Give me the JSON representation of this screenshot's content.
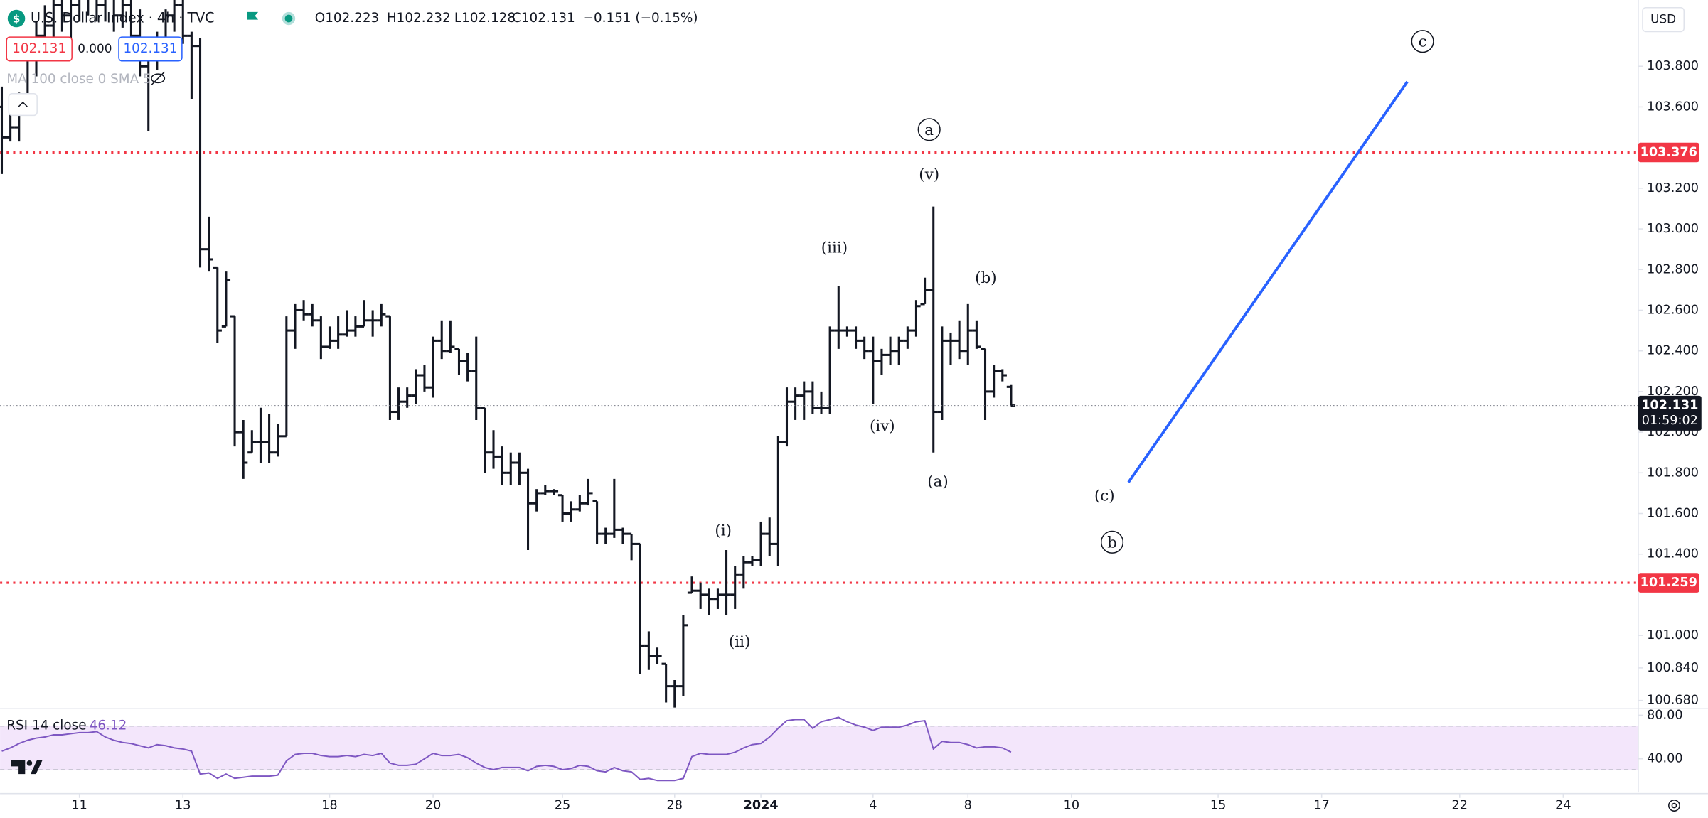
{
  "toolbar": {
    "bid": "102.131",
    "spread": "0.000",
    "ask": "102.131",
    "indicator": "MA 100 close 0 SMA 5",
    "currency": "USD"
  },
  "chart_data": [
    {
      "type": "ohlc",
      "title": "U.S. Dollar Index · 4h · TVC",
      "ohlc_labels": [
        "O102.223",
        "H102.232",
        "L102.128",
        "C102.131"
      ],
      "change_label": "−0.151 (−0.15%)",
      "color": "#131722",
      "x": [
        -9,
        -8,
        -7,
        -6,
        -5,
        -4,
        -3,
        -2,
        -1,
        0,
        1,
        2,
        3,
        4,
        5,
        6,
        7,
        8,
        9,
        10,
        11,
        12,
        13,
        14,
        15,
        16,
        17,
        18,
        19,
        20,
        21,
        22,
        23,
        24,
        25,
        26,
        27,
        28,
        29,
        30,
        31,
        32,
        33,
        34,
        35,
        36,
        37,
        38,
        39,
        40,
        41,
        42,
        43,
        44,
        45,
        46,
        47,
        48,
        49,
        50,
        51,
        52,
        53,
        54,
        55,
        56,
        57,
        58,
        59,
        60,
        61,
        62,
        63,
        64,
        65,
        66,
        67,
        68,
        69,
        70,
        71,
        72,
        73,
        74,
        75,
        76,
        77,
        78,
        79,
        80,
        81,
        82,
        83,
        84,
        85,
        86,
        87,
        88,
        89,
        90,
        91,
        92,
        93,
        94,
        95,
        96,
        97,
        98,
        99,
        100,
        101,
        102,
        103,
        104,
        105,
        106,
        107,
        108
      ],
      "open": [
        103.6,
        103.45,
        103.5,
        103.62,
        103.85,
        103.95,
        104.0,
        104.1,
        104.05,
        104.1,
        104.2,
        104.15,
        104.1,
        104.15,
        104.05,
        104.1,
        103.95,
        103.8,
        103.85,
        103.9,
        104.05,
        104.1,
        103.95,
        103.9,
        102.9,
        102.81,
        102.52,
        102.57,
        102.0,
        101.9,
        101.95,
        101.95,
        101.9,
        101.98,
        102.5,
        102.6,
        102.58,
        102.55,
        102.42,
        102.45,
        102.48,
        102.5,
        102.52,
        102.55,
        102.55,
        102.57,
        102.1,
        102.15,
        102.18,
        102.28,
        102.22,
        102.45,
        102.4,
        102.41,
        102.35,
        102.3,
        102.12,
        101.9,
        101.88,
        101.8,
        101.85,
        101.8,
        101.65,
        101.7,
        101.71,
        101.69,
        101.6,
        101.62,
        101.65,
        101.66,
        101.5,
        101.5,
        101.52,
        101.5,
        101.45,
        100.95,
        100.9,
        100.86,
        100.75,
        100.75,
        101.21,
        101.22,
        101.2,
        101.18,
        101.2,
        101.2,
        101.3,
        101.36,
        101.37,
        101.5,
        101.45,
        101.95,
        102.15,
        102.18,
        102.2,
        102.12,
        102.12,
        102.5,
        102.5,
        102.5,
        102.45,
        102.4,
        102.35,
        102.38,
        102.4,
        102.45,
        102.5,
        102.63,
        102.7,
        102.1,
        102.45,
        102.45,
        102.4,
        102.5,
        102.41,
        102.2,
        102.3,
        102.223
      ],
      "high": [
        103.7,
        103.62,
        103.67,
        103.89,
        104.02,
        104.1,
        104.2,
        104.25,
        104.15,
        104.3,
        104.35,
        104.3,
        104.28,
        104.28,
        104.25,
        104.2,
        104.08,
        103.91,
        103.97,
        104.08,
        104.2,
        104.2,
        103.97,
        103.94,
        103.06,
        102.81,
        102.79,
        102.57,
        102.06,
        102.01,
        102.12,
        102.09,
        102.04,
        102.57,
        102.63,
        102.65,
        102.63,
        102.57,
        102.52,
        102.57,
        102.6,
        102.57,
        102.65,
        102.6,
        102.63,
        102.57,
        102.22,
        102.22,
        102.31,
        102.33,
        102.47,
        102.55,
        102.55,
        102.41,
        102.39,
        102.47,
        102.12,
        102.01,
        101.93,
        101.9,
        101.9,
        101.82,
        101.72,
        101.74,
        101.72,
        101.69,
        101.66,
        101.69,
        101.77,
        101.66,
        101.53,
        101.77,
        101.53,
        101.5,
        101.45,
        101.02,
        100.94,
        100.86,
        100.78,
        101.1,
        101.29,
        101.26,
        101.23,
        101.23,
        101.42,
        101.34,
        101.39,
        101.39,
        101.56,
        101.58,
        101.98,
        102.22,
        102.22,
        102.25,
        102.25,
        102.2,
        102.52,
        102.72,
        102.52,
        102.52,
        102.47,
        102.47,
        102.41,
        102.47,
        102.47,
        102.52,
        102.65,
        102.76,
        103.11,
        102.52,
        102.49,
        102.55,
        102.63,
        102.55,
        102.41,
        102.33,
        102.31,
        102.232
      ],
      "low": [
        103.27,
        103.43,
        103.43,
        103.59,
        103.75,
        103.86,
        103.91,
        103.97,
        103.94,
        104.02,
        104.05,
        104.02,
        104.02,
        103.97,
        103.99,
        103.91,
        103.75,
        103.48,
        103.78,
        103.86,
        103.97,
        103.91,
        103.64,
        102.81,
        102.79,
        102.44,
        102.52,
        101.93,
        101.77,
        101.9,
        101.85,
        101.85,
        101.88,
        101.98,
        102.41,
        102.55,
        102.52,
        102.36,
        102.41,
        102.41,
        102.47,
        102.47,
        102.52,
        102.47,
        102.52,
        102.06,
        102.06,
        102.12,
        102.14,
        102.2,
        102.17,
        102.36,
        102.39,
        102.28,
        102.25,
        102.06,
        101.8,
        101.82,
        101.74,
        101.74,
        101.74,
        101.42,
        101.61,
        101.69,
        101.69,
        101.56,
        101.56,
        101.61,
        101.64,
        101.45,
        101.45,
        101.48,
        101.45,
        101.37,
        100.81,
        100.83,
        100.86,
        100.67,
        100.64,
        100.7,
        101.21,
        101.13,
        101.1,
        101.13,
        101.1,
        101.13,
        101.23,
        101.34,
        101.34,
        101.39,
        101.34,
        101.93,
        102.06,
        102.06,
        102.09,
        102.09,
        102.09,
        102.41,
        102.47,
        102.41,
        102.36,
        102.14,
        102.28,
        102.33,
        102.33,
        102.41,
        102.47,
        102.63,
        101.9,
        102.06,
        102.33,
        102.36,
        102.33,
        102.41,
        102.06,
        102.17,
        102.25,
        102.128
      ],
      "close": [
        103.45,
        103.5,
        103.62,
        103.85,
        103.95,
        104.0,
        104.1,
        104.05,
        104.1,
        104.2,
        104.15,
        104.1,
        104.15,
        104.05,
        104.1,
        103.95,
        103.8,
        103.85,
        103.9,
        104.05,
        104.1,
        103.95,
        103.9,
        102.9,
        102.85,
        102.5,
        102.75,
        102.0,
        101.85,
        101.95,
        101.95,
        101.9,
        101.98,
        102.5,
        102.6,
        102.58,
        102.55,
        102.42,
        102.45,
        102.48,
        102.5,
        102.52,
        102.55,
        102.55,
        102.58,
        102.1,
        102.15,
        102.18,
        102.28,
        102.22,
        102.45,
        102.4,
        102.42,
        102.35,
        102.3,
        102.12,
        101.9,
        101.88,
        101.8,
        101.85,
        101.8,
        101.65,
        101.7,
        101.71,
        101.71,
        101.6,
        101.62,
        101.65,
        101.7,
        101.5,
        101.5,
        101.52,
        101.5,
        101.45,
        100.95,
        100.9,
        100.9,
        100.75,
        100.75,
        101.05,
        101.22,
        101.2,
        101.18,
        101.2,
        101.2,
        101.3,
        101.36,
        101.37,
        101.5,
        101.45,
        101.95,
        102.15,
        102.18,
        102.2,
        102.12,
        102.12,
        102.5,
        102.5,
        102.5,
        102.45,
        102.4,
        102.35,
        102.38,
        102.4,
        102.45,
        102.5,
        102.62,
        102.7,
        102.1,
        102.45,
        102.45,
        102.4,
        102.5,
        102.42,
        102.2,
        102.3,
        102.28,
        102.131
      ],
      "xlim": [
        -9.2,
        180.7
      ],
      "xticks": [
        {
          "value": 0,
          "label": "11"
        },
        {
          "value": 12,
          "label": "13"
        },
        {
          "value": 29,
          "label": "18"
        },
        {
          "value": 41,
          "label": "20"
        },
        {
          "value": 56,
          "label": "25"
        },
        {
          "value": 69,
          "label": "28"
        },
        {
          "value": 79,
          "label": "2024"
        },
        {
          "value": 92,
          "label": "4"
        },
        {
          "value": 103,
          "label": "8"
        },
        {
          "value": 115,
          "label": "10"
        },
        {
          "value": 132,
          "label": "15"
        },
        {
          "value": 144,
          "label": "17"
        },
        {
          "value": 160,
          "label": "22"
        },
        {
          "value": 172,
          "label": "24"
        }
      ],
      "ylim": [
        100.645,
        104.126
      ],
      "yticks": [
        {
          "value": 100.68,
          "label": "100.680"
        },
        {
          "value": 100.84,
          "label": "100.840"
        },
        {
          "value": 101,
          "label": "101.000"
        },
        {
          "value": 101.4,
          "label": "101.400"
        },
        {
          "value": 101.6,
          "label": "101.600"
        },
        {
          "value": 101.8,
          "label": "101.800"
        },
        {
          "value": 102,
          "label": "102.000"
        },
        {
          "value": 102.2,
          "label": "102.200"
        },
        {
          "value": 102.4,
          "label": "102.400"
        },
        {
          "value": 102.6,
          "label": "102.600"
        },
        {
          "value": 102.8,
          "label": "102.800"
        },
        {
          "value": 103,
          "label": "103.000"
        },
        {
          "value": 103.2,
          "label": "103.200"
        },
        {
          "value": 103.6,
          "label": "103.600"
        },
        {
          "value": 103.8,
          "label": "103.800"
        }
      ],
      "grid": false,
      "hlines": [
        103.376,
        101.259
      ],
      "hline_color": "#f23645",
      "countdown": "01:59:02",
      "annotations": [
        "a",
        "(v)",
        "(iii)",
        "(b)",
        "(iv)",
        "(a)",
        "(c)",
        "b",
        "c",
        "(i)",
        "(ii)"
      ]
    },
    {
      "type": "line",
      "title": "RSI 14 close",
      "color": "#7e57c2",
      "band": [
        30,
        70
      ],
      "band_color": "#f3e6fb",
      "x": [
        -9,
        -8,
        -7,
        -6,
        -5,
        -4,
        -3,
        -2,
        -1,
        0,
        1,
        2,
        3,
        4,
        5,
        6,
        7,
        8,
        9,
        10,
        11,
        12,
        13,
        14,
        15,
        16,
        17,
        18,
        19,
        20,
        21,
        22,
        23,
        24,
        25,
        26,
        27,
        28,
        29,
        30,
        31,
        32,
        33,
        34,
        35,
        36,
        37,
        38,
        39,
        40,
        41,
        42,
        43,
        44,
        45,
        46,
        47,
        48,
        49,
        50,
        51,
        52,
        53,
        54,
        55,
        56,
        57,
        58,
        59,
        60,
        61,
        62,
        63,
        64,
        65,
        66,
        67,
        68,
        69,
        70,
        71,
        72,
        73,
        74,
        75,
        76,
        77,
        78,
        79,
        80,
        81,
        82,
        83,
        84,
        85,
        86,
        87,
        88,
        89,
        90,
        91,
        92,
        93,
        94,
        95,
        96,
        97,
        98,
        99,
        100,
        101,
        102,
        103,
        104,
        105,
        106,
        107,
        108
      ],
      "values": [
        47,
        50,
        54,
        57,
        59,
        60,
        62,
        62,
        63,
        64,
        64,
        65,
        60,
        57,
        55,
        54,
        52,
        50,
        53,
        52,
        50,
        49,
        47,
        26,
        27,
        22,
        26,
        22,
        23,
        24,
        24,
        24,
        25,
        38,
        44,
        45,
        45,
        43,
        42,
        42,
        43,
        42,
        44,
        43,
        45,
        36,
        34,
        34,
        35,
        40,
        45,
        43,
        43,
        44,
        41,
        36,
        32,
        30,
        32,
        32,
        32,
        29,
        33,
        34,
        33,
        30,
        31,
        34,
        33,
        29,
        28,
        32,
        29,
        28,
        21,
        22,
        20,
        20,
        20,
        22,
        42,
        45,
        44,
        44,
        44,
        46,
        50,
        53,
        54,
        60,
        68,
        75,
        76,
        76,
        68,
        74,
        76,
        78,
        74,
        71,
        69,
        66,
        69,
        69,
        69,
        71,
        74,
        75,
        49,
        56,
        55,
        55,
        53,
        50,
        51,
        51,
        50,
        46.12
      ],
      "xlim": [
        -9.2,
        180.7
      ],
      "ylim": [
        9,
        85
      ],
      "yticks": [
        {
          "value": 80,
          "label": "80.00"
        },
        {
          "value": 40,
          "label": "40.00"
        }
      ]
    }
  ]
}
